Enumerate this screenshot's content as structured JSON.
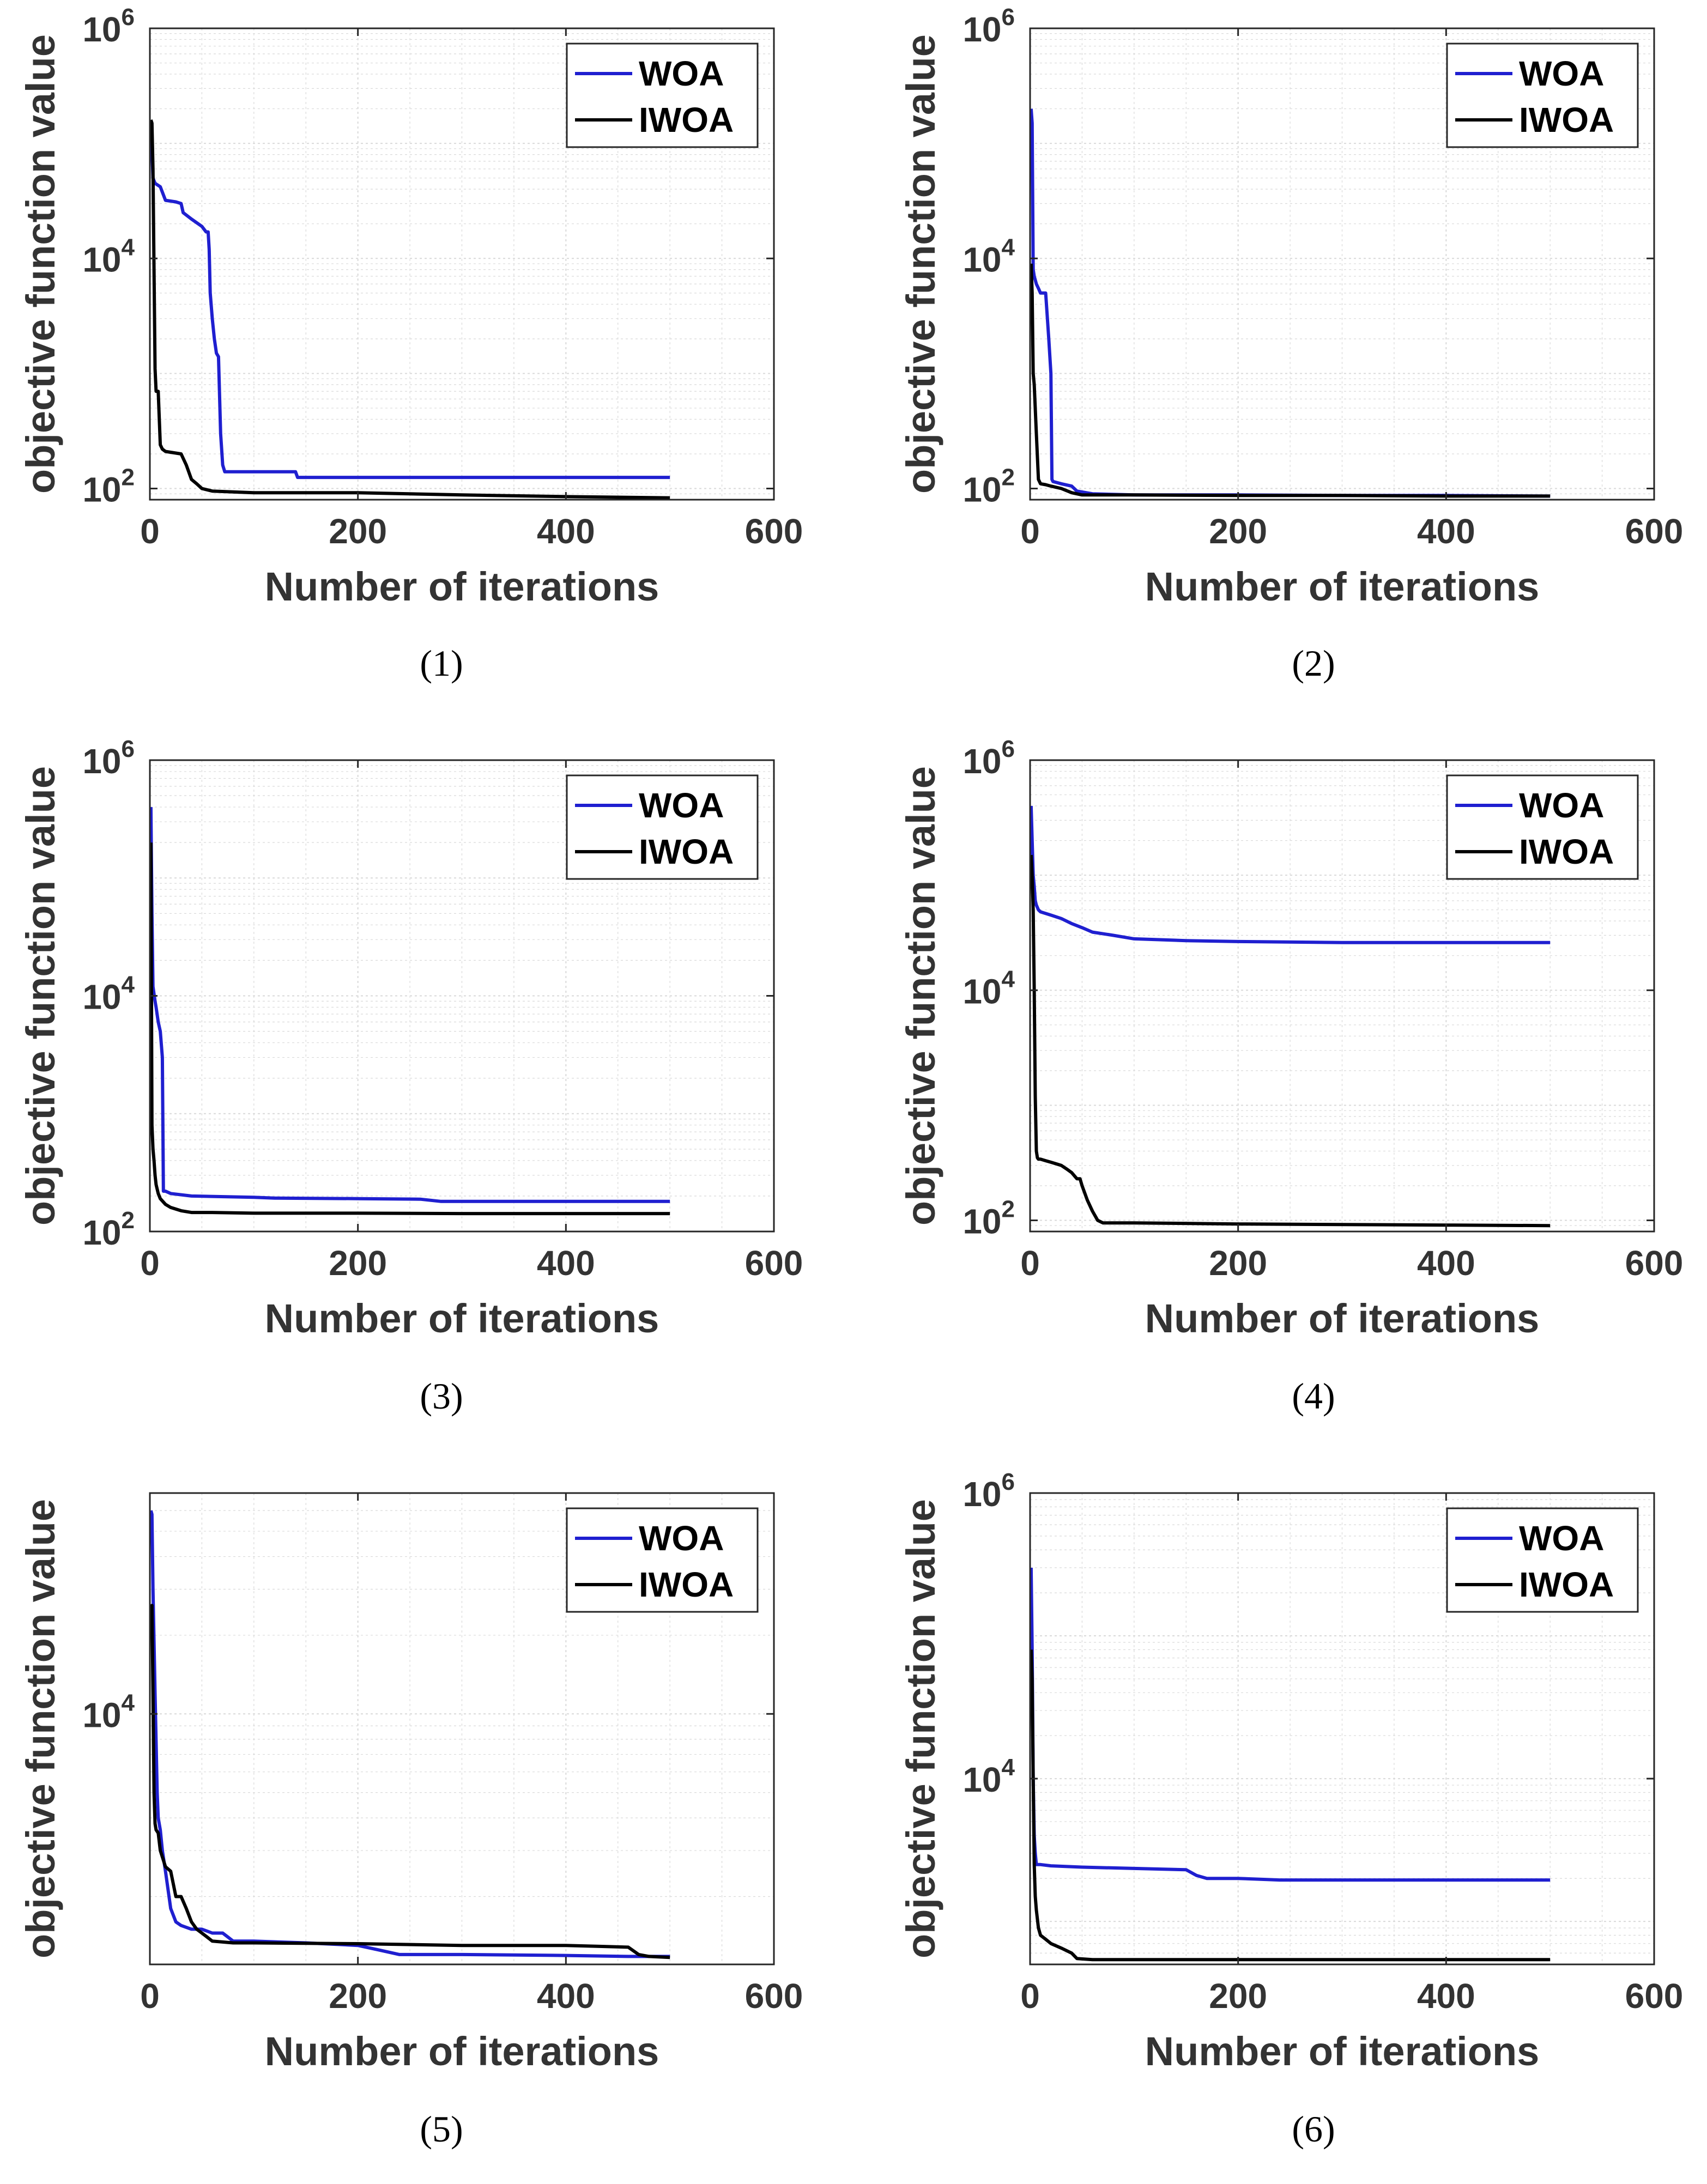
{
  "figure": {
    "panels": [
      {
        "caption": "(1)"
      },
      {
        "caption": "(2)"
      },
      {
        "caption": "(3)"
      },
      {
        "caption": "(4)"
      },
      {
        "caption": "(5)"
      },
      {
        "caption": "(6)"
      }
    ]
  },
  "colors": {
    "WOA": "#1f1fd0",
    "IWOA": "#000000",
    "grid": "#d9d9d9",
    "axis": "#262626"
  },
  "chart_data": [
    {
      "type": "line",
      "caption": "(1)",
      "xlabel": "Number of iterations",
      "ylabel": "objective function value",
      "xlim": [
        0,
        600
      ],
      "ylim": [
        80,
        1000000
      ],
      "yscale": "log",
      "grid": true,
      "legend": "top-right",
      "xticks": [
        0,
        200,
        400,
        600
      ],
      "yticks": [
        100,
        10000,
        1000000
      ],
      "series": [
        {
          "name": "WOA",
          "x": [
            1,
            3,
            5,
            10,
            15,
            25,
            30,
            32,
            40,
            50,
            54,
            56,
            57,
            58,
            60,
            62,
            64,
            66,
            68,
            70,
            72,
            75,
            100,
            140,
            142,
            200,
            300,
            400,
            500
          ],
          "y": [
            150000,
            50000,
            45000,
            42000,
            32000,
            31000,
            30000,
            25000,
            22000,
            19000,
            17000,
            17000,
            12000,
            5000,
            3000,
            2000,
            1500,
            1400,
            300,
            160,
            140,
            140,
            140,
            140,
            125,
            125,
            125,
            125,
            125
          ]
        },
        {
          "name": "IWOA",
          "x": [
            1,
            2,
            3,
            4,
            5,
            6,
            8,
            10,
            12,
            15,
            30,
            35,
            40,
            45,
            50,
            60,
            100,
            200,
            300,
            400,
            500
          ],
          "y": [
            160000,
            150000,
            60000,
            8000,
            1100,
            700,
            700,
            240,
            220,
            210,
            200,
            160,
            120,
            110,
            100,
            95,
            92,
            92,
            88,
            85,
            83
          ]
        }
      ]
    },
    {
      "type": "line",
      "caption": "(2)",
      "xlabel": "Number of iterations",
      "ylabel": "objective function value",
      "xlim": [
        0,
        600
      ],
      "ylim": [
        80,
        1000000
      ],
      "yscale": "log",
      "grid": true,
      "legend": "top-right",
      "xticks": [
        0,
        200,
        400,
        600
      ],
      "yticks": [
        100,
        10000,
        1000000
      ],
      "series": [
        {
          "name": "WOA",
          "x": [
            1,
            2,
            3,
            4,
            5,
            6,
            8,
            10,
            15,
            18,
            20,
            21,
            22,
            30,
            40,
            45,
            60,
            100,
            200,
            300,
            400,
            500
          ],
          "y": [
            200000,
            150000,
            8000,
            7000,
            6500,
            6000,
            5500,
            5000,
            5000,
            2000,
            1000,
            120,
            115,
            110,
            105,
            95,
            90,
            88,
            88,
            87,
            87,
            86
          ]
        },
        {
          "name": "IWOA",
          "x": [
            1,
            2,
            3,
            4,
            6,
            8,
            9,
            10,
            15,
            20,
            30,
            40,
            50,
            100,
            200,
            300,
            400,
            500
          ],
          "y": [
            9000,
            5000,
            1000,
            800,
            300,
            120,
            115,
            110,
            108,
            105,
            100,
            92,
            88,
            88,
            87,
            87,
            86,
            86
          ]
        }
      ]
    },
    {
      "type": "line",
      "caption": "(3)",
      "xlabel": "Number of iterations",
      "ylabel": "objective function value",
      "xlim": [
        0,
        600
      ],
      "ylim": [
        100,
        1000000
      ],
      "yscale": "log",
      "grid": true,
      "legend": "top-right",
      "xticks": [
        0,
        200,
        400,
        600
      ],
      "yticks": [
        100,
        10000,
        1000000
      ],
      "series": [
        {
          "name": "WOA",
          "x": [
            1,
            2,
            3,
            5,
            6,
            8,
            10,
            12,
            13,
            15,
            20,
            40,
            100,
            120,
            200,
            260,
            280,
            300,
            400,
            500
          ],
          "y": [
            400000,
            50000,
            12000,
            9000,
            8000,
            6000,
            5000,
            3000,
            220,
            220,
            210,
            200,
            195,
            192,
            190,
            188,
            180,
            180,
            180,
            180
          ]
        },
        {
          "name": "IWOA",
          "x": [
            1,
            2,
            3,
            4,
            5,
            6,
            8,
            10,
            15,
            20,
            30,
            40,
            60,
            100,
            200,
            300,
            400,
            500
          ],
          "y": [
            200000,
            800,
            500,
            400,
            300,
            250,
            210,
            190,
            170,
            160,
            150,
            145,
            145,
            143,
            143,
            142,
            142,
            142
          ]
        }
      ]
    },
    {
      "type": "line",
      "caption": "(4)",
      "xlabel": "Number of iterations",
      "ylabel": "objective function value",
      "xlim": [
        0,
        600
      ],
      "ylim": [
        80,
        1000000
      ],
      "yscale": "log",
      "grid": true,
      "legend": "top-right",
      "xticks": [
        0,
        200,
        400,
        600
      ],
      "yticks": [
        100,
        10000,
        1000000
      ],
      "series": [
        {
          "name": "WOA",
          "x": [
            1,
            2,
            3,
            4,
            5,
            6,
            8,
            10,
            20,
            30,
            40,
            50,
            60,
            80,
            100,
            150,
            200,
            300,
            400,
            500
          ],
          "y": [
            400000,
            200000,
            100000,
            80000,
            60000,
            55000,
            50000,
            48000,
            45000,
            42000,
            38000,
            35000,
            32000,
            30000,
            28000,
            27000,
            26500,
            26000,
            26000,
            26000
          ]
        },
        {
          "name": "IWOA",
          "x": [
            1,
            2,
            3,
            4,
            5,
            6,
            7,
            8,
            10,
            15,
            20,
            25,
            30,
            35,
            40,
            45,
            48,
            50,
            55,
            60,
            65,
            70,
            100,
            200,
            300,
            400,
            500
          ],
          "y": [
            150000,
            100000,
            50000,
            10000,
            1200,
            400,
            350,
            340,
            340,
            330,
            320,
            310,
            300,
            280,
            260,
            230,
            230,
            200,
            150,
            120,
            100,
            95,
            95,
            93,
            92,
            91,
            90
          ]
        }
      ]
    },
    {
      "type": "line",
      "caption": "(5)",
      "xlabel": "Number of iterations",
      "ylabel": "objective function value",
      "xlim": [
        0,
        600
      ],
      "ylim": [
        1100,
        70000
      ],
      "yscale": "log",
      "grid": true,
      "legend": "top-right",
      "xticks": [
        0,
        200,
        400,
        600
      ],
      "yticks": [
        10000
      ],
      "series": [
        {
          "name": "WOA",
          "x": [
            1,
            2,
            3,
            5,
            7,
            8,
            10,
            12,
            15,
            20,
            25,
            30,
            40,
            50,
            60,
            70,
            75,
            80,
            100,
            150,
            200,
            220,
            240,
            300,
            400,
            460,
            500
          ],
          "y": [
            60000,
            58000,
            30000,
            12000,
            5000,
            4000,
            3600,
            3000,
            2500,
            1800,
            1600,
            1550,
            1500,
            1500,
            1450,
            1450,
            1400,
            1350,
            1350,
            1330,
            1300,
            1250,
            1200,
            1200,
            1190,
            1180,
            1180
          ]
        },
        {
          "name": "IWOA",
          "x": [
            1,
            2,
            3,
            4,
            5,
            6,
            8,
            10,
            15,
            20,
            25,
            30,
            35,
            40,
            45,
            50,
            55,
            60,
            80,
            100,
            200,
            300,
            400,
            430,
            460,
            470,
            480,
            500
          ],
          "y": [
            25000,
            26000,
            12000,
            5000,
            3800,
            3600,
            3500,
            3000,
            2600,
            2500,
            2000,
            2000,
            1800,
            1600,
            1500,
            1450,
            1400,
            1350,
            1330,
            1330,
            1320,
            1300,
            1300,
            1290,
            1280,
            1200,
            1180,
            1170
          ]
        }
      ]
    },
    {
      "type": "line",
      "caption": "(6)",
      "xlabel": "Number of iterations",
      "ylabel": "objective function value",
      "xlim": [
        0,
        600
      ],
      "ylim": [
        500,
        1000000
      ],
      "yscale": "log",
      "grid": true,
      "legend": "top-right",
      "xticks": [
        0,
        200,
        400,
        600
      ],
      "yticks": [
        10000,
        1000000
      ],
      "series": [
        {
          "name": "WOA",
          "x": [
            1,
            2,
            3,
            4,
            5,
            6,
            8,
            10,
            20,
            50,
            100,
            150,
            160,
            170,
            200,
            240,
            300,
            400,
            500
          ],
          "y": [
            300000,
            80000,
            10000,
            4000,
            3000,
            2500,
            2500,
            2500,
            2450,
            2400,
            2350,
            2300,
            2100,
            2000,
            2000,
            1950,
            1950,
            1950,
            1950
          ]
        },
        {
          "name": "IWOA",
          "x": [
            1,
            2,
            3,
            4,
            5,
            6,
            8,
            10,
            15,
            20,
            30,
            40,
            45,
            60,
            100,
            200,
            300,
            400,
            500
          ],
          "y": [
            80000,
            50000,
            10000,
            2500,
            1500,
            1200,
            900,
            800,
            750,
            700,
            650,
            600,
            550,
            540,
            540,
            540,
            540,
            540,
            540
          ]
        }
      ]
    }
  ]
}
